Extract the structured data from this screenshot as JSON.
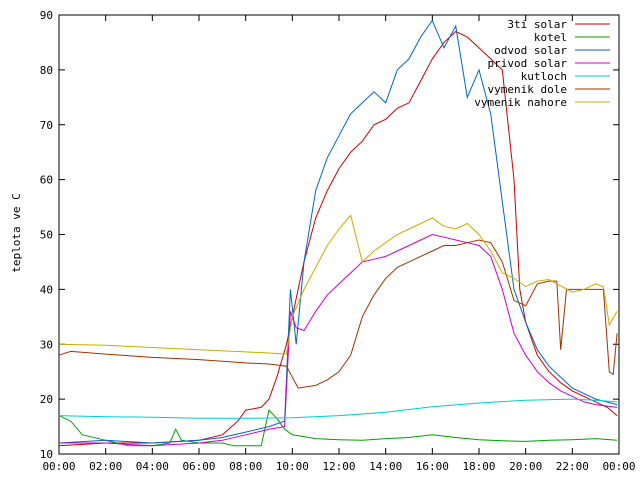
{
  "chart_data": {
    "type": "line",
    "title": "",
    "xlabel": "",
    "ylabel": "teplota ve C",
    "xlim": [
      "00:00",
      "24:00"
    ],
    "ylim": [
      10,
      90
    ],
    "grid": false,
    "legend_position": "top-right",
    "x_ticks": [
      "00:00",
      "02:00",
      "04:00",
      "06:00",
      "08:00",
      "10:00",
      "12:00",
      "14:00",
      "16:00",
      "18:00",
      "20:00",
      "22:00",
      "00:00"
    ],
    "y_ticks": [
      10,
      20,
      30,
      40,
      50,
      60,
      70,
      80,
      90
    ],
    "series": [
      {
        "name": "3ti solar",
        "color": "#cc0000",
        "points": [
          [
            "00:00",
            11.5
          ],
          [
            "02:00",
            12.0
          ],
          [
            "04:00",
            12.0
          ],
          [
            "06:00",
            12.5
          ],
          [
            "07:00",
            13.5
          ],
          [
            "07:40",
            16.0
          ],
          [
            "08:00",
            18.0
          ],
          [
            "08:40",
            18.5
          ],
          [
            "09:00",
            20.0
          ],
          [
            "09:20",
            24.0
          ],
          [
            "09:45",
            30.0
          ],
          [
            "10:00",
            35.0
          ],
          [
            "10:30",
            45.0
          ],
          [
            "11:00",
            53.0
          ],
          [
            "11:30",
            58.0
          ],
          [
            "12:00",
            62.0
          ],
          [
            "12:30",
            65.0
          ],
          [
            "13:00",
            67.0
          ],
          [
            "13:30",
            70.0
          ],
          [
            "14:00",
            71.0
          ],
          [
            "14:30",
            73.0
          ],
          [
            "15:00",
            74.0
          ],
          [
            "15:30",
            78.0
          ],
          [
            "16:00",
            82.0
          ],
          [
            "16:30",
            85.0
          ],
          [
            "17:00",
            87.0
          ],
          [
            "17:30",
            86.0
          ],
          [
            "18:00",
            84.0
          ],
          [
            "18:30",
            82.0
          ],
          [
            "19:00",
            80.0
          ],
          [
            "19:30",
            60.0
          ],
          [
            "19:45",
            40.0
          ],
          [
            "20:00",
            34.0
          ],
          [
            "20:30",
            28.0
          ],
          [
            "21:00",
            25.0
          ],
          [
            "21:30",
            23.0
          ],
          [
            "22:00",
            21.5
          ],
          [
            "22:30",
            20.5
          ],
          [
            "23:00",
            19.5
          ],
          [
            "23:30",
            18.5
          ],
          [
            "23:55",
            17.0
          ]
        ]
      },
      {
        "name": "kotel",
        "color": "#00a000",
        "points": [
          [
            "00:00",
            17.0
          ],
          [
            "00:30",
            16.0
          ],
          [
            "01:00",
            13.5
          ],
          [
            "02:00",
            12.5
          ],
          [
            "03:00",
            11.5
          ],
          [
            "04:00",
            11.5
          ],
          [
            "04:45",
            12.0
          ],
          [
            "05:00",
            14.5
          ],
          [
            "05:15",
            12.5
          ],
          [
            "06:00",
            12.0
          ],
          [
            "07:00",
            12.0
          ],
          [
            "07:30",
            11.5
          ],
          [
            "08:00",
            11.5
          ],
          [
            "08:40",
            11.5
          ],
          [
            "09:00",
            18.0
          ],
          [
            "09:20",
            16.5
          ],
          [
            "09:40",
            14.5
          ],
          [
            "10:00",
            13.5
          ],
          [
            "11:00",
            12.8
          ],
          [
            "12:00",
            12.6
          ],
          [
            "13:00",
            12.5
          ],
          [
            "14:00",
            12.8
          ],
          [
            "15:00",
            13.0
          ],
          [
            "16:00",
            13.5
          ],
          [
            "17:00",
            13.0
          ],
          [
            "18:00",
            12.6
          ],
          [
            "19:00",
            12.4
          ],
          [
            "20:00",
            12.3
          ],
          [
            "21:00",
            12.5
          ],
          [
            "22:00",
            12.6
          ],
          [
            "23:00",
            12.8
          ],
          [
            "23:55",
            12.5
          ]
        ]
      },
      {
        "name": "odvod solar",
        "color": "#0066cc",
        "points": [
          [
            "00:00",
            12.0
          ],
          [
            "02:00",
            12.5
          ],
          [
            "04:00",
            12.0
          ],
          [
            "06:00",
            12.5
          ],
          [
            "07:00",
            13.0
          ],
          [
            "08:00",
            14.0
          ],
          [
            "09:00",
            15.0
          ],
          [
            "09:40",
            16.0
          ],
          [
            "09:55",
            40.0
          ],
          [
            "10:10",
            30.0
          ],
          [
            "10:30",
            45.0
          ],
          [
            "11:00",
            58.0
          ],
          [
            "11:30",
            64.0
          ],
          [
            "12:00",
            68.0
          ],
          [
            "12:30",
            72.0
          ],
          [
            "13:00",
            74.0
          ],
          [
            "13:30",
            76.0
          ],
          [
            "14:00",
            74.0
          ],
          [
            "14:30",
            80.0
          ],
          [
            "15:00",
            82.0
          ],
          [
            "15:30",
            86.0
          ],
          [
            "16:00",
            89.0
          ],
          [
            "16:30",
            84.0
          ],
          [
            "17:00",
            88.0
          ],
          [
            "17:30",
            75.0
          ],
          [
            "18:00",
            80.0
          ],
          [
            "18:30",
            72.0
          ],
          [
            "19:00",
            56.0
          ],
          [
            "19:30",
            40.0
          ],
          [
            "20:00",
            34.0
          ],
          [
            "20:30",
            29.0
          ],
          [
            "21:00",
            26.0
          ],
          [
            "21:30",
            24.0
          ],
          [
            "22:00",
            22.0
          ],
          [
            "22:30",
            21.0
          ],
          [
            "23:00",
            20.0
          ],
          [
            "23:55",
            19.0
          ]
        ]
      },
      {
        "name": "privod solar",
        "color": "#cc00cc",
        "points": [
          [
            "00:00",
            12.0
          ],
          [
            "02:00",
            12.0
          ],
          [
            "04:00",
            11.5
          ],
          [
            "06:00",
            12.0
          ],
          [
            "07:00",
            12.5
          ],
          [
            "08:00",
            13.5
          ],
          [
            "09:00",
            14.5
          ],
          [
            "09:40",
            15.0
          ],
          [
            "09:55",
            36.0
          ],
          [
            "10:10",
            33.0
          ],
          [
            "10:30",
            32.5
          ],
          [
            "11:00",
            36.0
          ],
          [
            "11:30",
            39.0
          ],
          [
            "12:00",
            41.0
          ],
          [
            "12:30",
            43.0
          ],
          [
            "13:00",
            45.0
          ],
          [
            "13:30",
            45.5
          ],
          [
            "14:00",
            46.0
          ],
          [
            "14:30",
            47.0
          ],
          [
            "15:00",
            48.0
          ],
          [
            "15:30",
            49.0
          ],
          [
            "16:00",
            50.0
          ],
          [
            "16:30",
            49.5
          ],
          [
            "17:00",
            49.0
          ],
          [
            "17:30",
            48.5
          ],
          [
            "18:00",
            48.0
          ],
          [
            "18:30",
            46.0
          ],
          [
            "19:00",
            40.0
          ],
          [
            "19:30",
            32.0
          ],
          [
            "20:00",
            28.0
          ],
          [
            "20:30",
            25.0
          ],
          [
            "21:00",
            23.0
          ],
          [
            "21:30",
            21.5
          ],
          [
            "22:00",
            20.5
          ],
          [
            "22:30",
            19.5
          ],
          [
            "23:00",
            19.0
          ],
          [
            "23:55",
            18.5
          ]
        ]
      },
      {
        "name": "kutloch",
        "color": "#00cccc",
        "points": [
          [
            "00:00",
            17.0
          ],
          [
            "02:00",
            16.8
          ],
          [
            "04:00",
            16.7
          ],
          [
            "06:00",
            16.5
          ],
          [
            "08:00",
            16.5
          ],
          [
            "10:00",
            16.6
          ],
          [
            "12:00",
            17.0
          ],
          [
            "14:00",
            17.6
          ],
          [
            "16:00",
            18.6
          ],
          [
            "18:00",
            19.3
          ],
          [
            "20:00",
            19.8
          ],
          [
            "22:00",
            20.0
          ],
          [
            "23:00",
            19.8
          ],
          [
            "23:55",
            19.5
          ]
        ]
      },
      {
        "name": "vymenik dole",
        "color": "#a03200",
        "points": [
          [
            "00:00",
            28.0
          ],
          [
            "00:30",
            28.7
          ],
          [
            "02:00",
            28.2
          ],
          [
            "04:00",
            27.6
          ],
          [
            "06:00",
            27.2
          ],
          [
            "08:00",
            26.6
          ],
          [
            "09:00",
            26.4
          ],
          [
            "09:45",
            26.0
          ],
          [
            "10:00",
            24.0
          ],
          [
            "10:15",
            22.0
          ],
          [
            "11:00",
            22.5
          ],
          [
            "11:30",
            23.5
          ],
          [
            "12:00",
            25.0
          ],
          [
            "12:30",
            28.0
          ],
          [
            "13:00",
            35.0
          ],
          [
            "13:30",
            39.0
          ],
          [
            "14:00",
            42.0
          ],
          [
            "14:30",
            44.0
          ],
          [
            "15:00",
            45.0
          ],
          [
            "15:30",
            46.0
          ],
          [
            "16:00",
            47.0
          ],
          [
            "16:30",
            48.0
          ],
          [
            "17:00",
            48.0
          ],
          [
            "17:30",
            48.5
          ],
          [
            "18:00",
            49.0
          ],
          [
            "18:30",
            48.5
          ],
          [
            "19:00",
            45.0
          ],
          [
            "19:30",
            38.0
          ],
          [
            "20:00",
            37.0
          ],
          [
            "20:30",
            41.0
          ],
          [
            "21:00",
            41.5
          ],
          [
            "21:20",
            41.5
          ],
          [
            "21:30",
            29.0
          ],
          [
            "21:45",
            40.0
          ],
          [
            "22:00",
            40.0
          ],
          [
            "22:30",
            40.0
          ],
          [
            "23:00",
            40.0
          ],
          [
            "23:20",
            40.0
          ],
          [
            "23:35",
            25.0
          ],
          [
            "23:45",
            24.5
          ],
          [
            "23:55",
            32.0
          ]
        ]
      },
      {
        "name": "vymenik nahore",
        "color": "#ccaa00",
        "points": [
          [
            "00:00",
            30.0
          ],
          [
            "02:00",
            29.8
          ],
          [
            "04:00",
            29.4
          ],
          [
            "06:00",
            29.0
          ],
          [
            "08:00",
            28.6
          ],
          [
            "09:00",
            28.4
          ],
          [
            "09:45",
            28.2
          ],
          [
            "10:00",
            35.0
          ],
          [
            "10:30",
            40.0
          ],
          [
            "11:00",
            44.0
          ],
          [
            "11:30",
            48.0
          ],
          [
            "12:00",
            51.0
          ],
          [
            "12:30",
            53.5
          ],
          [
            "13:00",
            45.0
          ],
          [
            "13:30",
            47.0
          ],
          [
            "14:00",
            48.5
          ],
          [
            "14:30",
            50.0
          ],
          [
            "15:00",
            51.0
          ],
          [
            "15:30",
            52.0
          ],
          [
            "16:00",
            53.0
          ],
          [
            "16:30",
            51.5
          ],
          [
            "17:00",
            51.0
          ],
          [
            "17:30",
            52.0
          ],
          [
            "18:00",
            50.0
          ],
          [
            "18:30",
            47.0
          ],
          [
            "19:00",
            43.0
          ],
          [
            "19:30",
            42.0
          ],
          [
            "20:00",
            40.5
          ],
          [
            "20:30",
            41.5
          ],
          [
            "21:00",
            41.8
          ],
          [
            "22:00",
            39.5
          ],
          [
            "22:30",
            40.0
          ],
          [
            "23:00",
            41.0
          ],
          [
            "23:20",
            40.5
          ],
          [
            "23:35",
            33.5
          ],
          [
            "23:55",
            36.0
          ]
        ]
      }
    ]
  }
}
